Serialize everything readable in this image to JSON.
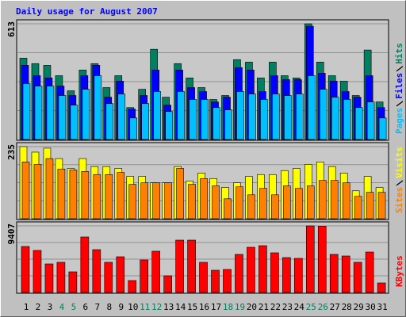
{
  "chart_data": [
    {
      "type": "bar",
      "title": "Daily usage for August 2007",
      "ylim": [
        0,
        613
      ],
      "yticks": [
        613
      ],
      "series": [
        {
          "name": "Hits",
          "color": "#008060",
          "values": [
            431,
            402,
            393,
            338,
            258,
            368,
            402,
            275,
            338,
            169,
            266,
            478,
            224,
            402,
            326,
            275,
            212,
            233,
            423,
            410,
            326,
            410,
            338,
            326,
            613,
            410,
            338,
            309,
            233,
            474,
            199
          ]
        },
        {
          "name": "Files",
          "color": "#0000ff",
          "values": [
            393,
            338,
            326,
            283,
            233,
            338,
            393,
            224,
            309,
            161,
            233,
            368,
            182,
            368,
            275,
            254,
            199,
            224,
            381,
            368,
            254,
            338,
            317,
            317,
            600,
            351,
            309,
            254,
            224,
            338,
            169
          ]
        },
        {
          "name": "Pages",
          "color": "#00c0ff",
          "values": [
            296,
            283,
            283,
            233,
            182,
            266,
            338,
            190,
            241,
            114,
            190,
            254,
            148,
            254,
            212,
            212,
            169,
            157,
            254,
            241,
            212,
            241,
            233,
            241,
            338,
            266,
            224,
            212,
            169,
            199,
            114
          ]
        }
      ]
    },
    {
      "type": "bar",
      "ylim": [
        0,
        235
      ],
      "yticks": [
        235
      ],
      "series": [
        {
          "name": "Visits",
          "color": "#ffff00",
          "values": [
            235,
            217,
            230,
            196,
            164,
            196,
            170,
            170,
            164,
            138,
            138,
            117,
            117,
            170,
            123,
            149,
            131,
            102,
            117,
            138,
            144,
            144,
            157,
            164,
            177,
            185,
            170,
            149,
            91,
            138,
            102
          ]
        },
        {
          "name": "Sites",
          "color": "#ff8000",
          "values": [
            185,
            177,
            196,
            162,
            159,
            154,
            144,
            144,
            151,
            112,
            117,
            117,
            117,
            164,
            112,
            131,
            107,
            65,
            104,
            78,
            99,
            78,
            107,
            99,
            107,
            125,
            125,
            117,
            73,
            86,
            86
          ]
        }
      ]
    },
    {
      "type": "bar",
      "ylim": [
        0,
        9407
      ],
      "yticks": [
        9407
      ],
      "series": [
        {
          "name": "KBytes",
          "color": "#ff0000",
          "values": [
            6496,
            5936,
            4032,
            4256,
            2912,
            7840,
            6048,
            4256,
            5040,
            1680,
            4592,
            5824,
            2352,
            7392,
            7392,
            4256,
            3136,
            3248,
            5376,
            6384,
            6608,
            5600,
            4928,
            4816,
            9407,
            9360,
            5376,
            5152,
            4256,
            5712,
            1344
          ]
        }
      ],
      "categories": [
        "1",
        "2",
        "3",
        "4",
        "5",
        "6",
        "7",
        "8",
        "9",
        "10",
        "11",
        "12",
        "13",
        "14",
        "15",
        "16",
        "17",
        "18",
        "19",
        "20",
        "21",
        "22",
        "23",
        "24",
        "25",
        "26",
        "27",
        "28",
        "29",
        "30",
        "31"
      ],
      "category_colors": [
        "#000000",
        "#000000",
        "#000000",
        "#008060",
        "#008060",
        "#000000",
        "#000000",
        "#000000",
        "#000000",
        "#000000",
        "#008060",
        "#008060",
        "#000000",
        "#000000",
        "#000000",
        "#000000",
        "#000000",
        "#008060",
        "#008060",
        "#000000",
        "#000000",
        "#000000",
        "#000000",
        "#000000",
        "#008060",
        "#008060",
        "#000000",
        "#000000",
        "#000000",
        "#000000",
        "#000000"
      ]
    }
  ]
}
